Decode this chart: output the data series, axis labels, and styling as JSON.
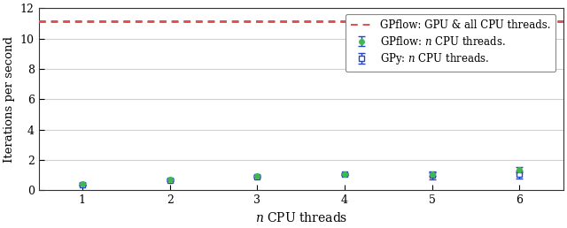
{
  "gpu_line_y1": 11.05,
  "gpu_line_y2": 11.15,
  "x": [
    1,
    2,
    3,
    4,
    5,
    6
  ],
  "gpflow_cpu_y": [
    0.42,
    0.73,
    0.95,
    1.05,
    1.05,
    1.35
  ],
  "gpflow_cpu_yerr": [
    0.05,
    0.06,
    0.04,
    0.04,
    0.12,
    0.18
  ],
  "gpy_y": [
    0.35,
    0.68,
    0.9,
    1.08,
    1.0,
    1.05
  ],
  "gpy_yerr": [
    0.05,
    0.06,
    0.05,
    0.06,
    0.25,
    0.28
  ],
  "gpu_color": "#e05050",
  "gpflow_color": "#3dba4e",
  "gpy_color": "#2244cc",
  "xlabel": "$n$ CPU threads",
  "ylabel": "Iterations per second",
  "ylim": [
    0,
    12
  ],
  "xlim": [
    0.5,
    6.5
  ],
  "xticks": [
    1,
    2,
    3,
    4,
    5,
    6
  ],
  "yticks": [
    0,
    2,
    4,
    6,
    8,
    10,
    12
  ],
  "legend_gpu": "GPflow: GPU & all CPU threads.",
  "legend_gpflow": "GPflow: $n$ CPU threads.",
  "legend_gpy": "GPy: $n$ CPU threads.",
  "figsize": [
    6.4,
    2.58
  ],
  "dpi": 100,
  "grid_color": "#d0d0d0",
  "bg_color": "#ffffff"
}
